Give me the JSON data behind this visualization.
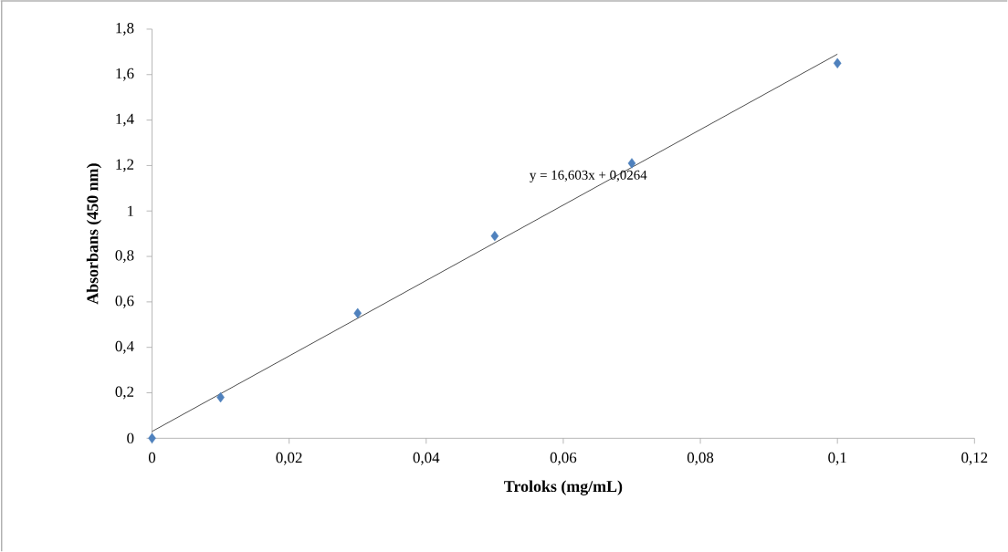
{
  "chart_data": {
    "type": "scatter",
    "xlabel": "Troloks (mg/mL)",
    "ylabel": "Absorbans (450 nm)",
    "x": [
      0,
      0.01,
      0.03,
      0.05,
      0.07,
      0.1
    ],
    "series": [
      {
        "color": "#4f81bd",
        "marker": "diamond",
        "values": [
          0,
          0.18,
          0.55,
          0.89,
          1.21,
          1.65
        ]
      },
      {
        "type": "line",
        "color": "#000000",
        "marker": "none",
        "x": [
          0,
          0.1
        ],
        "values": [
          0.03,
          1.69
        ]
      }
    ],
    "annotations": [
      "y = 16,603x + 0,0264"
    ],
    "xlim": [
      0,
      0.12
    ],
    "ylim": [
      0,
      1.8
    ],
    "xticks": [
      0,
      {
        "value": 0.02,
        "label": "0,02"
      },
      {
        "value": 0.04,
        "label": "0,04"
      },
      {
        "value": 0.06,
        "label": "0,06"
      },
      {
        "value": 0.08,
        "label": "0,08"
      },
      {
        "value": 0.1,
        "label": "0,1"
      },
      {
        "value": 0.12,
        "label": "0,12"
      }
    ],
    "yticks": [
      0,
      {
        "value": 0.2,
        "label": "0,2"
      },
      {
        "value": 0.4,
        "label": "0,4"
      },
      {
        "value": 0.6,
        "label": "0,6"
      },
      {
        "value": 0.8,
        "label": "0,8"
      },
      1,
      {
        "value": 1.2,
        "label": "1,2"
      },
      {
        "value": 1.4,
        "label": "1,4"
      },
      {
        "value": 1.6,
        "label": "1,6"
      },
      {
        "value": 1.8,
        "label": "1,8"
      }
    ],
    "grid": false
  }
}
